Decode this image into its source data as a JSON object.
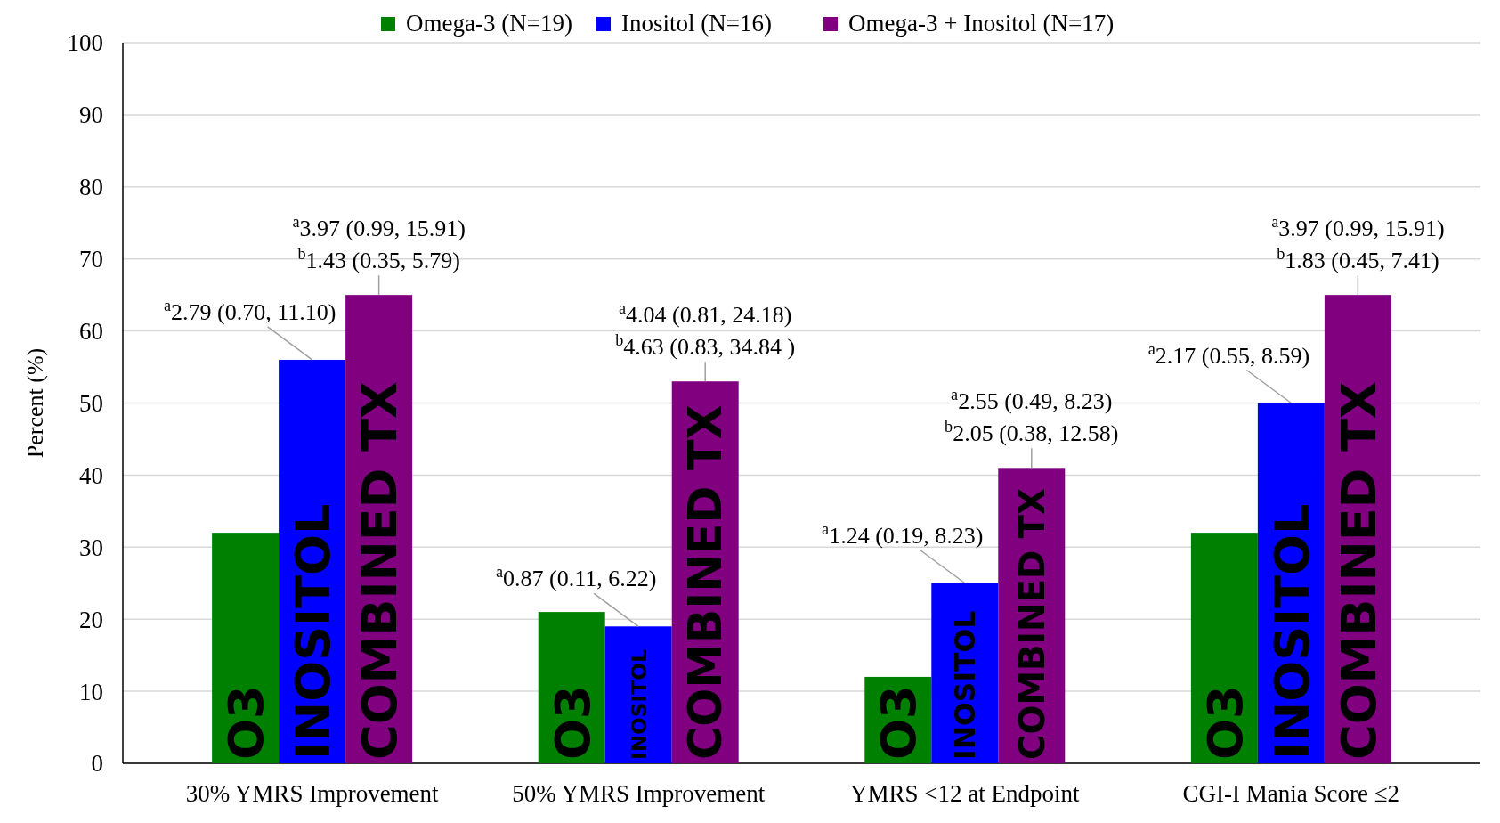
{
  "chart_data": {
    "type": "bar",
    "ylabel": "Percent (%)",
    "categories": [
      "30% YMRS Improvement",
      "50% YMRS Improvement",
      "YMRS <12 at Endpoint",
      "CGI-I Mania Score ≤2"
    ],
    "series": [
      {
        "name": "Omega-3 (N=19)",
        "color": "#008000",
        "values": [
          32,
          21,
          12,
          32
        ]
      },
      {
        "name": "Inositol (N=16)",
        "color": "#0000ff",
        "values": [
          56,
          19,
          25,
          50
        ],
        "value_labels": [
          "$^{a}$2.79 (0.70, 11.10)",
          "$^{a}$0.87 (0.11, 6.22)",
          "$^{a}$1.24 (0.19, 8.23)",
          "$^{a}$2.17 (0.55, 8.59)"
        ]
      },
      {
        "name": "Omega-3 + Inositol (N=17)",
        "color": "#800080",
        "values": [
          65,
          53,
          41,
          65
        ],
        "value_labels": [
          "$^{a}$3.97 (0.99, 15.91)\n$^{b}$1.43 (0.35, 5.79)",
          "$^{a}$4.04 (0.81, 24.18)\n$^{b}$4.63 (0.83, 34.84 )",
          "$^{a}$2.55 (0.49, 8.23)\n$^{b}$2.05 (0.38, 12.58)",
          "$^{a}$3.97 (0.99, 15.91)\n$^{b}$1.83 (0.45, 7.41)"
        ]
      }
    ],
    "annotations": [
      {
        "text": "O3",
        "x": "30% YMRS Improvement",
        "y": 0
      },
      {
        "text": "INOSITOL",
        "x": "30% YMRS Improvement",
        "y": 0
      },
      {
        "text": "COMBINED TX",
        "x": "30% YMRS Improvement",
        "y": 0
      },
      {
        "text": "O3",
        "x": "50% YMRS Improvement",
        "y": 0
      },
      {
        "text": "INOSITOL",
        "x": "50% YMRS Improvement",
        "y": 0
      },
      {
        "text": "COMBINED TX",
        "x": "50% YMRS Improvement",
        "y": 0
      },
      {
        "text": "O3",
        "x": "YMRS <12 at Endpoint",
        "y": 0
      },
      {
        "text": "INOSITOL",
        "x": "YMRS <12 at Endpoint",
        "y": 0
      },
      {
        "text": "COMBINED TX",
        "x": "YMRS <12 at Endpoint",
        "y": 0
      },
      {
        "text": "O3",
        "x": "CGI-I Mania Score ≤2",
        "y": 0
      },
      {
        "text": "INOSITOL",
        "x": "CGI-I Mania Score ≤2",
        "y": 0
      },
      {
        "text": "COMBINED TX",
        "x": "CGI-I Mania Score ≤2",
        "y": 0
      }
    ],
    "ylim": [
      0,
      100
    ],
    "yticks": [
      0,
      10,
      20,
      30,
      40,
      50,
      60,
      70,
      80,
      90,
      100
    ],
    "grid": "y",
    "legend": "top"
  }
}
